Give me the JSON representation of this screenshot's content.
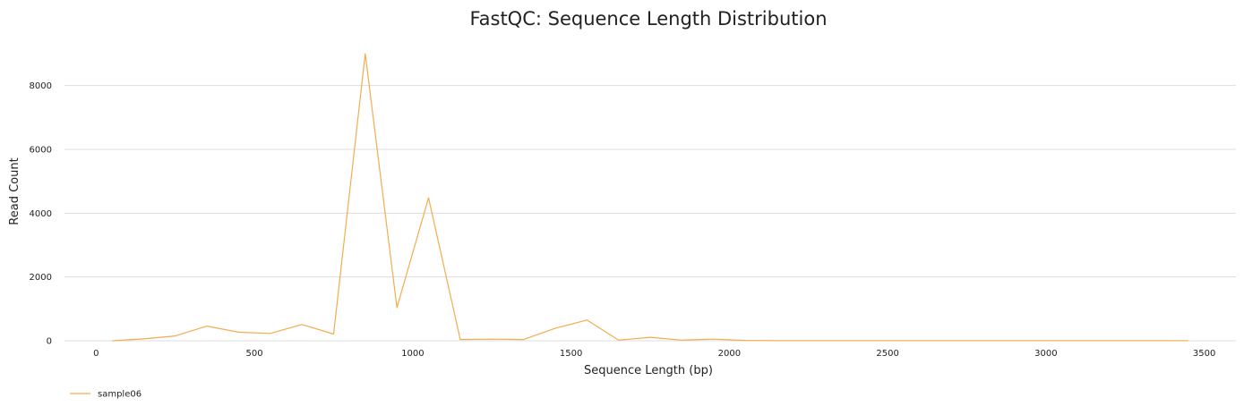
{
  "chart_data": {
    "type": "line",
    "title": "FastQC: Sequence Length Distribution",
    "xlabel": "Sequence Length (bp)",
    "ylabel": "Read Count",
    "xlim": [
      -100,
      3600
    ],
    "ylim": [
      0,
      9000
    ],
    "xticks": [
      0,
      500,
      1000,
      1500,
      2000,
      2500,
      3000,
      3500
    ],
    "yticks": [
      0,
      2000,
      4000,
      6000,
      8000
    ],
    "grid": "horizontal",
    "legend_position": "bottom-left",
    "series": [
      {
        "name": "sample06",
        "color": "#f0ad4e",
        "x": [
          50,
          150,
          250,
          350,
          450,
          550,
          650,
          750,
          850,
          950,
          1050,
          1150,
          1250,
          1350,
          1450,
          1550,
          1650,
          1750,
          1850,
          1950,
          2050,
          2150,
          2250,
          2350,
          2450,
          2550,
          2650,
          2750,
          2850,
          2950,
          3050,
          3150,
          3250,
          3350,
          3450
        ],
        "y": [
          0,
          60,
          150,
          460,
          270,
          230,
          510,
          210,
          9000,
          1040,
          4480,
          40,
          50,
          40,
          390,
          650,
          20,
          110,
          20,
          50,
          10,
          5,
          5,
          5,
          5,
          5,
          5,
          5,
          5,
          5,
          5,
          5,
          5,
          5,
          5
        ]
      }
    ]
  }
}
